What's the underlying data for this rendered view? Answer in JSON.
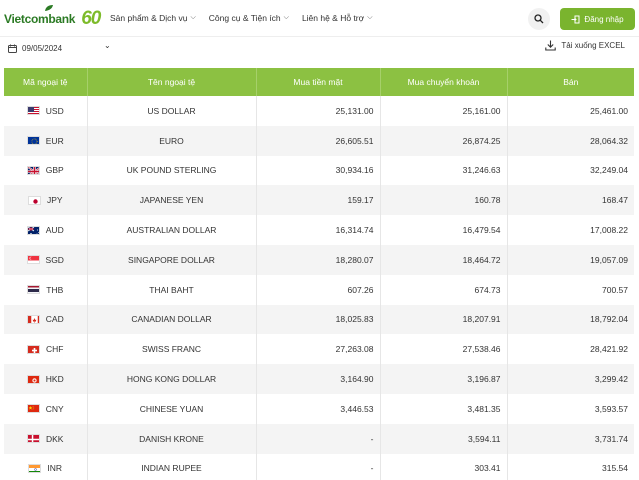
{
  "header": {
    "logo_text": "Vietcombank",
    "logo_anniversary": "60",
    "nav": [
      {
        "label": "Sản phẩm & Dịch vụ"
      },
      {
        "label": "Công cụ & Tiện ích"
      },
      {
        "label": "Liên hệ & Hỗ trợ"
      }
    ],
    "login_label": "Đăng nhập"
  },
  "toolbar": {
    "date": "09/05/2024",
    "download_label": "Tải xuống EXCEL"
  },
  "table": {
    "columns": [
      "Mã ngoại tệ",
      "Tên ngoại tệ",
      "Mua tiền mặt",
      "Mua chuyển khoản",
      "Bán"
    ],
    "rows": [
      {
        "code": "USD",
        "name": "US DOLLAR",
        "cash": "25,131.00",
        "transfer": "25,161.00",
        "sell": "25,461.00",
        "flag": "us-flag-icon"
      },
      {
        "code": "EUR",
        "name": "EURO",
        "cash": "26,605.51",
        "transfer": "26,874.25",
        "sell": "28,064.32",
        "flag": "eu-flag-icon"
      },
      {
        "code": "GBP",
        "name": "UK POUND STERLING",
        "cash": "30,934.16",
        "transfer": "31,246.63",
        "sell": "32,249.04",
        "flag": "gb-flag-icon"
      },
      {
        "code": "JPY",
        "name": "JAPANESE YEN",
        "cash": "159.17",
        "transfer": "160.78",
        "sell": "168.47",
        "flag": "jp-flag-icon"
      },
      {
        "code": "AUD",
        "name": "AUSTRALIAN DOLLAR",
        "cash": "16,314.74",
        "transfer": "16,479.54",
        "sell": "17,008.22",
        "flag": "au-flag-icon"
      },
      {
        "code": "SGD",
        "name": "SINGAPORE DOLLAR",
        "cash": "18,280.07",
        "transfer": "18,464.72",
        "sell": "19,057.09",
        "flag": "sg-flag-icon"
      },
      {
        "code": "THB",
        "name": "THAI BAHT",
        "cash": "607.26",
        "transfer": "674.73",
        "sell": "700.57",
        "flag": "th-flag-icon"
      },
      {
        "code": "CAD",
        "name": "CANADIAN DOLLAR",
        "cash": "18,025.83",
        "transfer": "18,207.91",
        "sell": "18,792.04",
        "flag": "ca-flag-icon"
      },
      {
        "code": "CHF",
        "name": "SWISS FRANC",
        "cash": "27,263.08",
        "transfer": "27,538.46",
        "sell": "28,421.92",
        "flag": "ch-flag-icon"
      },
      {
        "code": "HKD",
        "name": "HONG KONG DOLLAR",
        "cash": "3,164.90",
        "transfer": "3,196.87",
        "sell": "3,299.42",
        "flag": "hk-flag-icon"
      },
      {
        "code": "CNY",
        "name": "CHINESE YUAN",
        "cash": "3,446.53",
        "transfer": "3,481.35",
        "sell": "3,593.57",
        "flag": "cn-flag-icon"
      },
      {
        "code": "DKK",
        "name": "DANISH KRONE",
        "cash": "-",
        "transfer": "3,594.11",
        "sell": "3,731.74",
        "flag": "dk-flag-icon"
      },
      {
        "code": "INR",
        "name": "INDIAN RUPEE",
        "cash": "-",
        "transfer": "303.41",
        "sell": "315.54",
        "flag": "in-flag-icon"
      }
    ]
  },
  "colors": {
    "brand_green": "#2b7a24",
    "accent_green": "#8cc142",
    "button_green": "#7ab42e"
  }
}
